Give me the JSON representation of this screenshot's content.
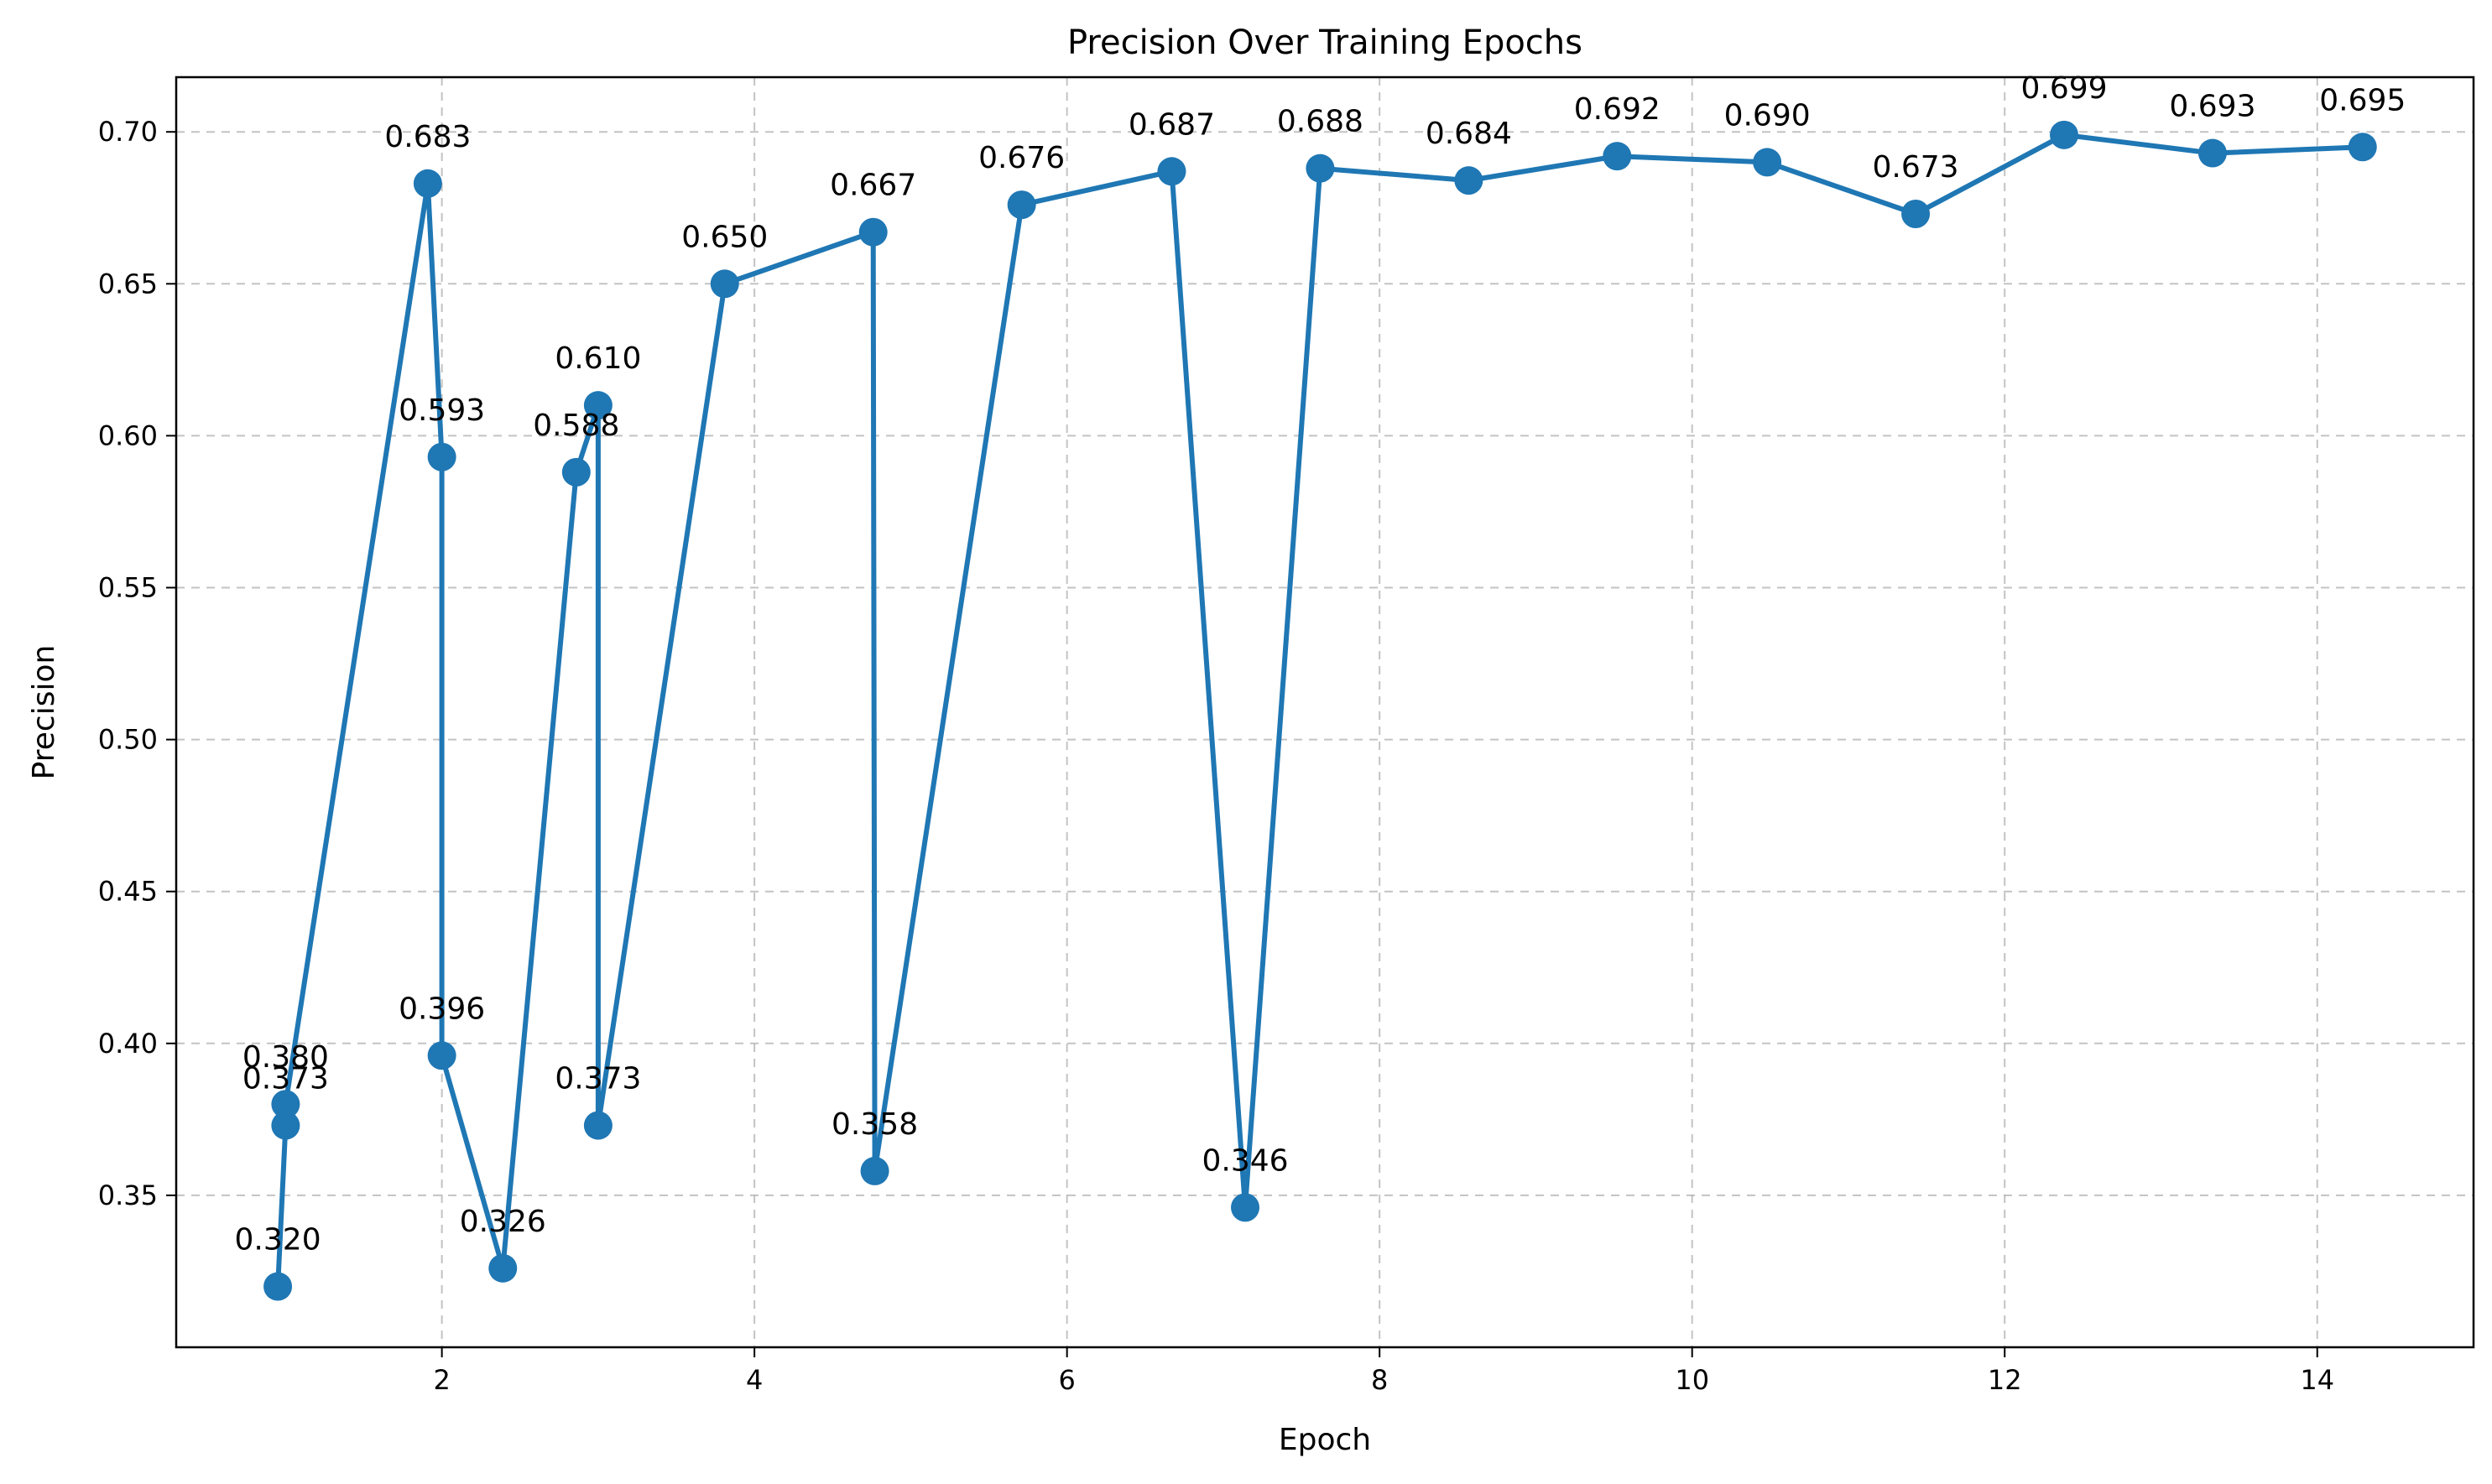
{
  "chart_data": {
    "type": "line",
    "title": "Precision Over Training Epochs",
    "xlabel": "Epoch",
    "ylabel": "Precision",
    "xlim": [
      0.3,
      15.0
    ],
    "ylim": [
      0.3,
      0.718
    ],
    "xticks": [
      2,
      4,
      6,
      8,
      10,
      12,
      14
    ],
    "yticks": [
      0.35,
      0.4,
      0.45,
      0.5,
      0.55,
      0.6,
      0.65,
      0.7
    ],
    "grid": true,
    "legend": "none",
    "color": "#1f77b4",
    "series": [
      {
        "x": [
          0.95,
          1.0,
          1.0,
          1.91,
          2.0,
          2.0,
          2.39,
          2.86,
          3.0,
          3.0,
          3.81,
          4.76,
          4.77,
          5.71,
          6.67,
          7.14,
          7.62,
          8.57,
          9.52,
          10.48,
          11.43,
          12.38,
          13.33,
          14.29
        ],
        "y": [
          0.32,
          0.373,
          0.38,
          0.683,
          0.593,
          0.396,
          0.326,
          0.588,
          0.61,
          0.373,
          0.65,
          0.667,
          0.358,
          0.676,
          0.687,
          0.346,
          0.688,
          0.684,
          0.692,
          0.69,
          0.673,
          0.699,
          0.693,
          0.695
        ],
        "labels": [
          "0.320",
          "0.373",
          "0.380",
          "0.683",
          "0.593",
          "0.396",
          "0.326",
          "0.588",
          "0.610",
          "0.373",
          "0.650",
          "0.667",
          "0.358",
          "0.676",
          "0.687",
          "0.346",
          "0.688",
          "0.684",
          "0.692",
          "0.690",
          "0.673",
          "0.699",
          "0.693",
          "0.695"
        ]
      }
    ]
  }
}
